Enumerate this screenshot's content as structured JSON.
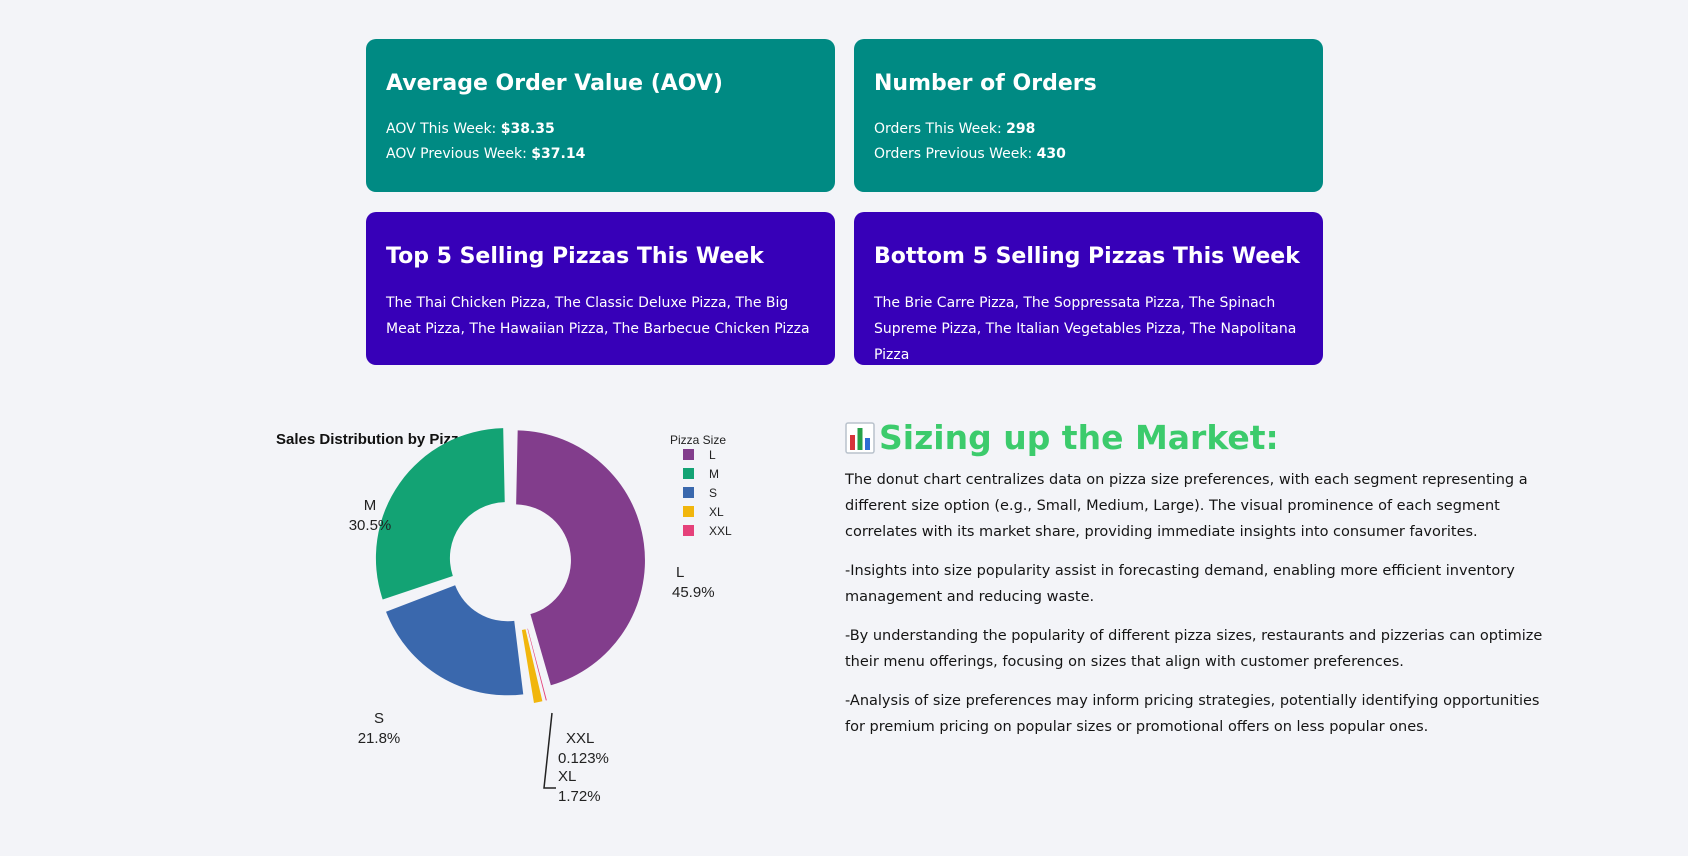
{
  "cards": {
    "aov": {
      "title": "Average Order Value (AOV)",
      "this_week_label": "AOV This Week: ",
      "this_week_value": "$38.35",
      "prev_week_label": "AOV Previous Week: ",
      "prev_week_value": "$37.14",
      "color": "#008a83"
    },
    "orders": {
      "title": "Number of Orders",
      "this_week_label": "Orders This Week: ",
      "this_week_value": "298",
      "prev_week_label": "Orders Previous Week: ",
      "prev_week_value": "430",
      "color": "#008a83"
    },
    "top": {
      "title": "Top 5 Selling Pizzas This Week",
      "text": "The Thai Chicken Pizza, The Classic Deluxe Pizza, The Big Meat Pizza, The Hawaiian Pizza, The Barbecue Chicken Pizza",
      "color": "#3700b8"
    },
    "bottom": {
      "title": "Bottom 5 Selling Pizzas This Week",
      "text": "The Brie Carre Pizza, The Soppressata Pizza, The Spinach Supreme Pizza, The Italian Vegetables Pizza, The Napolitana Pizza",
      "color": "#3700b8"
    }
  },
  "chart_data": {
    "type": "pie",
    "title": "Sales Distribution by Pizza Size",
    "legend_title": "Pizza Size",
    "legend_position": "top-right",
    "hole": true,
    "slices": [
      {
        "label": "L",
        "value": 45.9,
        "display": "45.9%",
        "color": "#823d8c"
      },
      {
        "label": "XXL",
        "value": 0.123,
        "display": "0.123%",
        "color": "#e5417a"
      },
      {
        "label": "XL",
        "value": 1.72,
        "display": "1.72%",
        "color": "#f1b60d"
      },
      {
        "label": "S",
        "value": 21.8,
        "display": "21.8%",
        "color": "#3a68ad"
      },
      {
        "label": "M",
        "value": 30.5,
        "display": "30.5%",
        "color": "#13a374"
      }
    ],
    "legend_order": [
      "L",
      "M",
      "S",
      "XL",
      "XXL"
    ]
  },
  "insight": {
    "icon": "bar-chart-icon",
    "heading": "Sizing up the Market:",
    "paragraphs": [
      "The donut chart centralizes data on pizza size preferences, with each segment representing a different size option (e.g., Small, Medium, Large). The visual prominence of each segment correlates with its market share, providing immediate insights into consumer favorites.",
      "-Insights into size popularity assist in forecasting demand, enabling more efficient inventory management and reducing waste.",
      "-By understanding the popularity of different pizza sizes, restaurants and pizzerias can optimize their menu offerings, focusing on sizes that align with customer preferences.",
      "-Analysis of size preferences may inform pricing strategies, potentially identifying opportunities for premium pricing on popular sizes or promotional offers on less popular ones."
    ],
    "heading_color": "#3ccb6c"
  }
}
